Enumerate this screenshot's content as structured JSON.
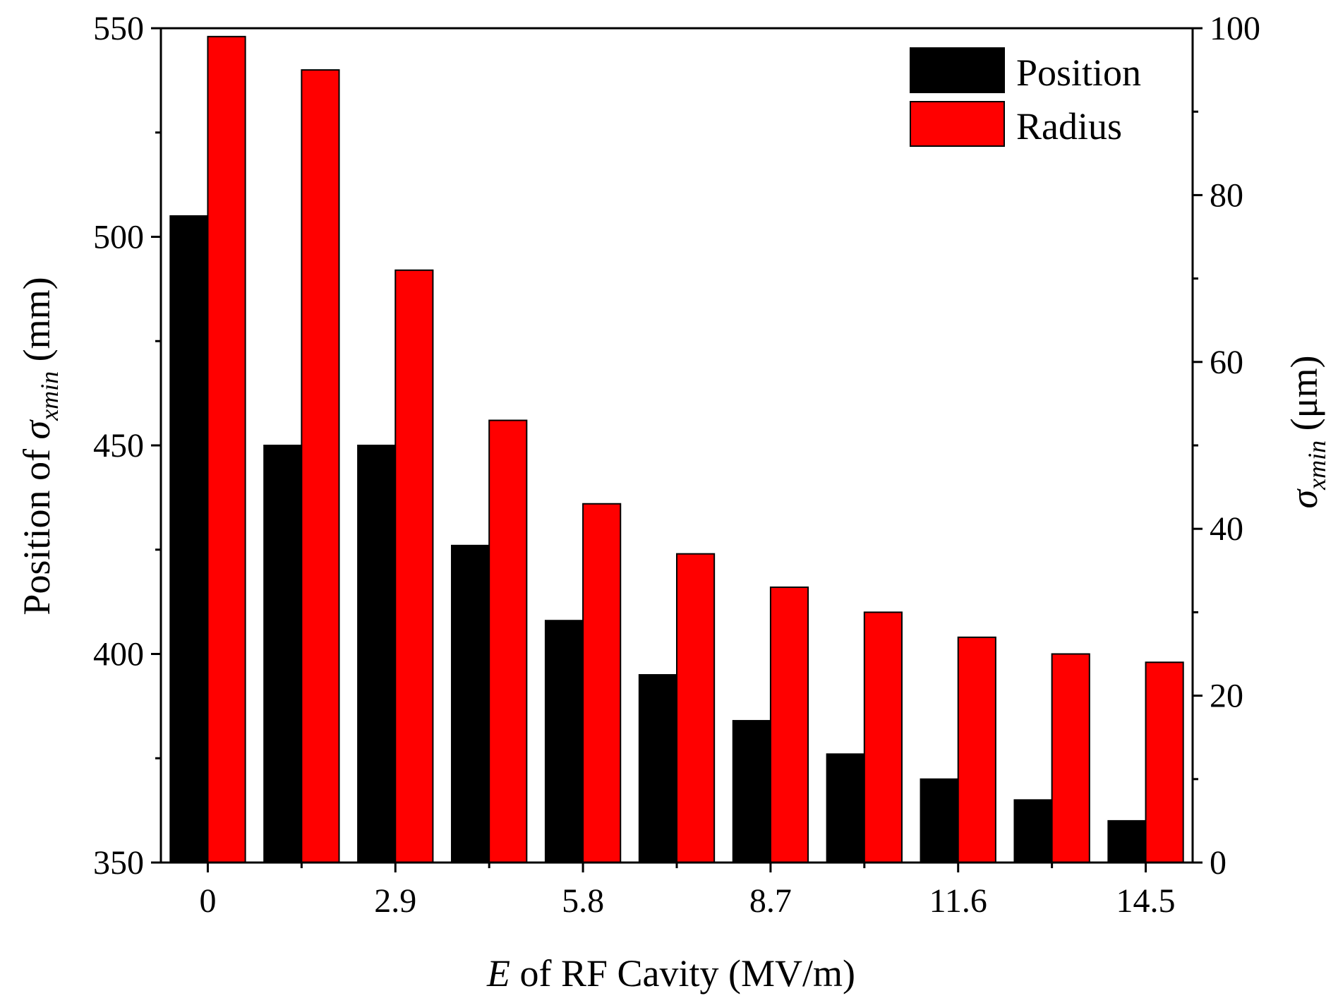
{
  "chart_data": {
    "type": "bar",
    "categories": [
      "0",
      "1.45",
      "2.9",
      "4.35",
      "5.8",
      "7.25",
      "8.7",
      "10.15",
      "11.6",
      "13.05",
      "14.5"
    ],
    "x_tick_labels": [
      "0",
      "2.9",
      "5.8",
      "8.7",
      "11.6",
      "14.5"
    ],
    "series": [
      {
        "name": "Position",
        "axis": "left",
        "color": "#000000",
        "values": [
          505,
          450,
          450,
          426,
          408,
          395,
          384,
          376,
          370,
          365,
          360
        ]
      },
      {
        "name": "Radius",
        "axis": "right",
        "color": "#ff0000",
        "values": [
          99,
          95,
          71,
          53,
          43,
          37,
          33,
          30,
          27,
          25,
          24
        ]
      }
    ],
    "xlabel": {
      "italic": "E",
      "rest": " of RF Cavity (MV/m)"
    },
    "ylabel_left": {
      "pre": "Position of ",
      "sigma": "σ",
      "sub": "xmin",
      "post": " (mm)"
    },
    "ylabel_right": {
      "sigma": "σ",
      "sub": "xmin",
      "post": " (μm)"
    },
    "ylim_left": [
      350,
      550
    ],
    "yticks_left": [
      350,
      400,
      450,
      500,
      550
    ],
    "ylim_right": [
      0,
      100
    ],
    "yticks_right": [
      0,
      20,
      40,
      60,
      80,
      100
    ],
    "legend": {
      "position": "top-right",
      "entries": [
        "Position",
        "Radius"
      ]
    }
  }
}
